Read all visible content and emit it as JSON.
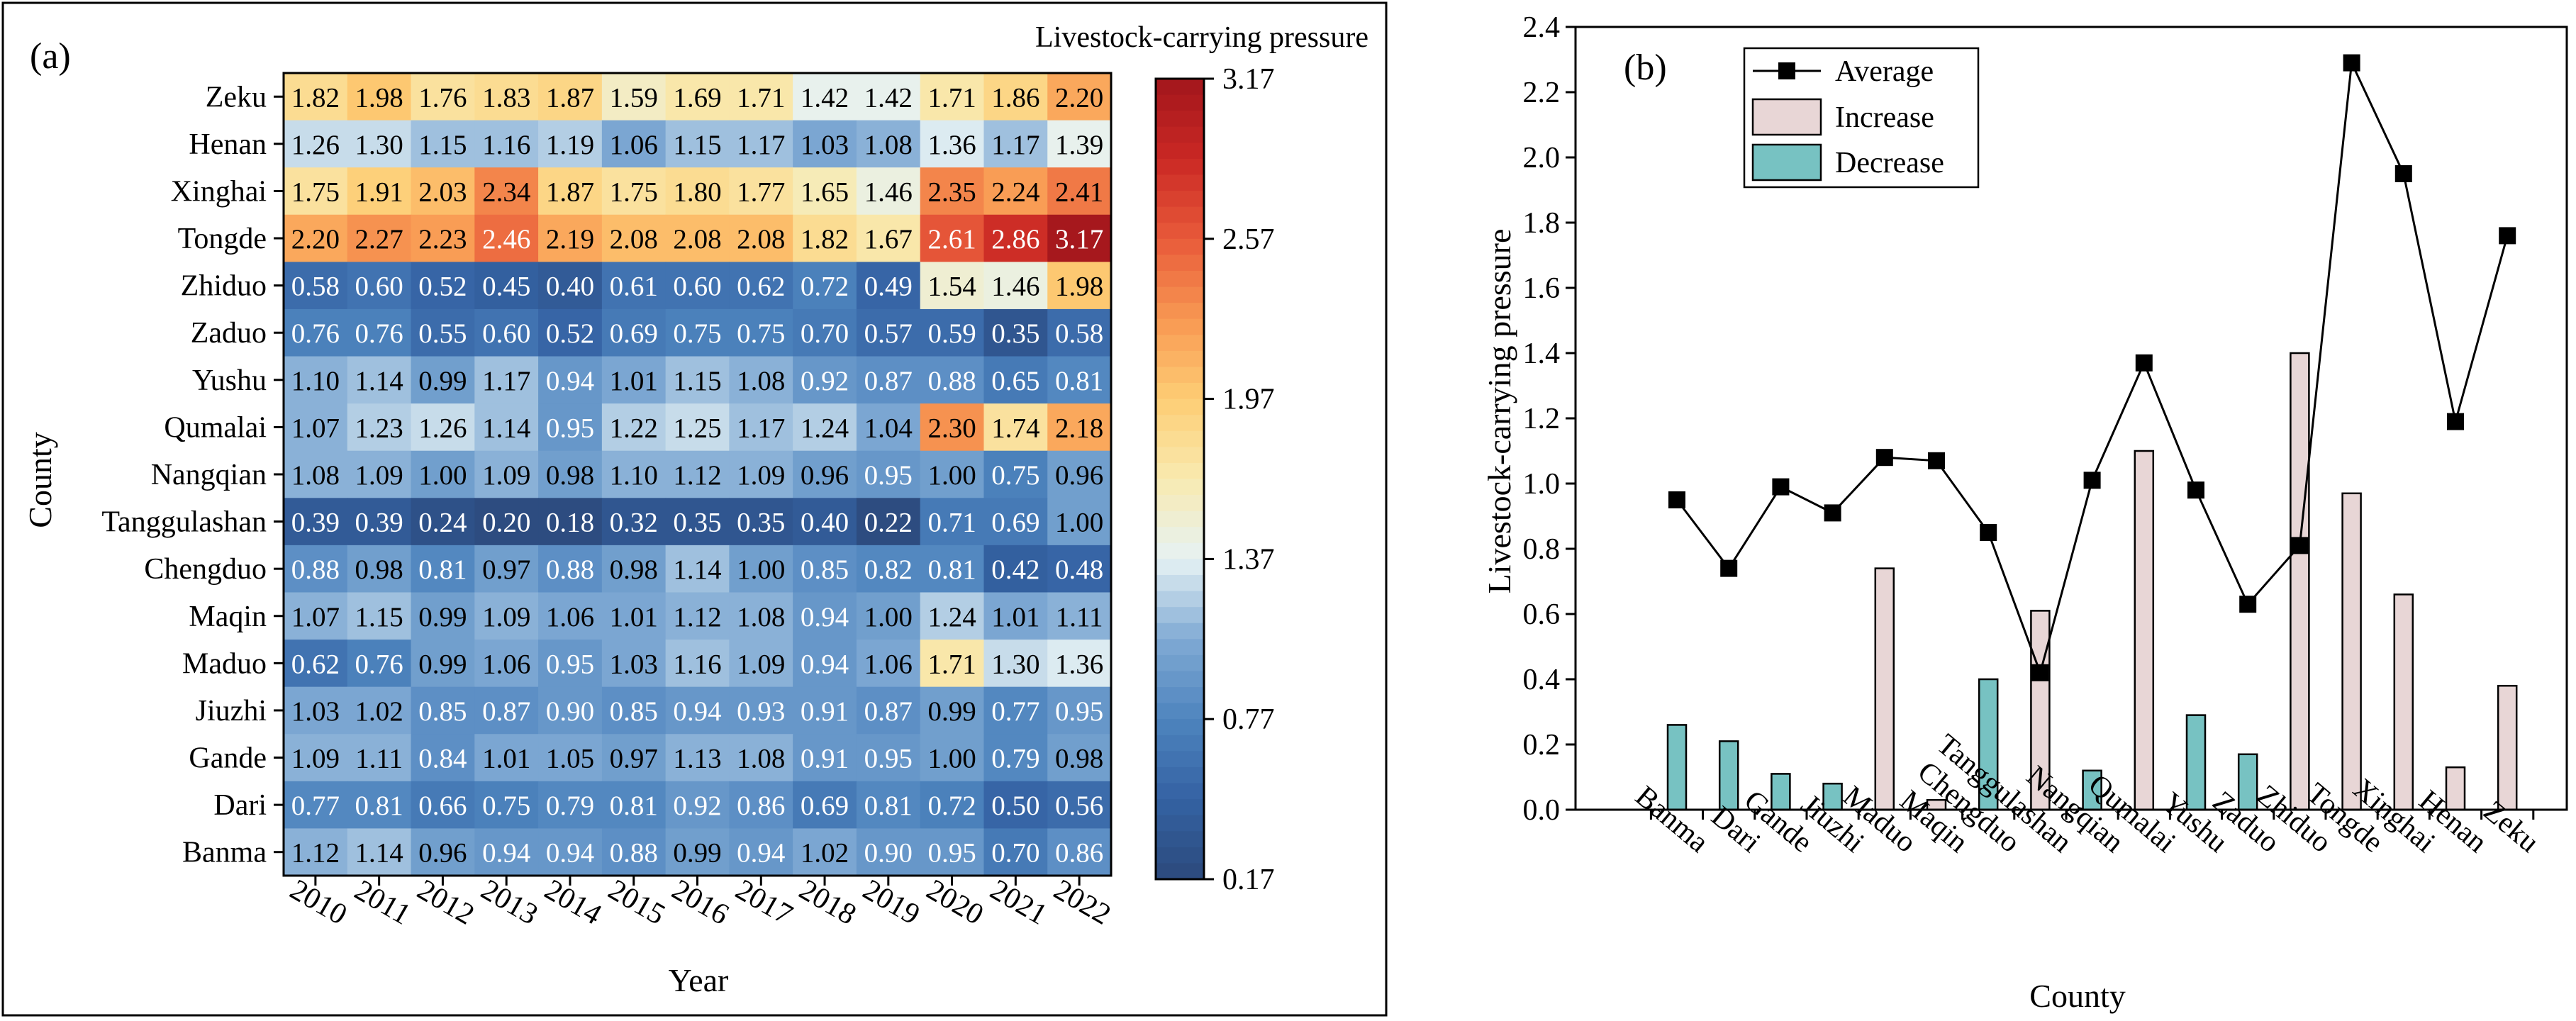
{
  "chart_data": [
    {
      "type": "heatmap",
      "panel_label": "(a)",
      "title": "Livestock-carrying pressure",
      "xlabel": "Year",
      "ylabel": "County",
      "years": [
        "2010",
        "2011",
        "2012",
        "2013",
        "2014",
        "2015",
        "2016",
        "2017",
        "2018",
        "2019",
        "2020",
        "2021",
        "2022"
      ],
      "counties": [
        "Zeku",
        "Henan",
        "Xinghai",
        "Tongde",
        "Zhiduo",
        "Zaduo",
        "Yushu",
        "Qumalai",
        "Nangqian",
        "Tanggulashan",
        "Chengduo",
        "Maqin",
        "Maduo",
        "Jiuzhi",
        "Gande",
        "Dari",
        "Banma"
      ],
      "values": [
        [
          1.82,
          1.98,
          1.76,
          1.83,
          1.87,
          1.59,
          1.69,
          1.71,
          1.42,
          1.42,
          1.71,
          1.86,
          2.2
        ],
        [
          1.26,
          1.3,
          1.15,
          1.16,
          1.19,
          1.06,
          1.15,
          1.17,
          1.03,
          1.08,
          1.36,
          1.17,
          1.39
        ],
        [
          1.75,
          1.91,
          2.03,
          2.34,
          1.87,
          1.75,
          1.8,
          1.77,
          1.65,
          1.46,
          2.35,
          2.24,
          2.41
        ],
        [
          2.2,
          2.27,
          2.23,
          2.46,
          2.19,
          2.08,
          2.08,
          2.08,
          1.82,
          1.67,
          2.61,
          2.86,
          3.17
        ],
        [
          0.58,
          0.6,
          0.52,
          0.45,
          0.4,
          0.61,
          0.6,
          0.62,
          0.72,
          0.49,
          1.54,
          1.46,
          1.98
        ],
        [
          0.76,
          0.76,
          0.55,
          0.6,
          0.52,
          0.69,
          0.75,
          0.75,
          0.7,
          0.57,
          0.59,
          0.35,
          0.58
        ],
        [
          1.1,
          1.14,
          0.99,
          1.17,
          0.94,
          1.01,
          1.15,
          1.08,
          0.92,
          0.87,
          0.88,
          0.65,
          0.81
        ],
        [
          1.07,
          1.23,
          1.26,
          1.14,
          0.95,
          1.22,
          1.25,
          1.17,
          1.24,
          1.04,
          2.3,
          1.74,
          2.18
        ],
        [
          1.08,
          1.09,
          1.0,
          1.09,
          0.98,
          1.1,
          1.12,
          1.09,
          0.96,
          0.95,
          1.0,
          0.75,
          0.96
        ],
        [
          0.39,
          0.39,
          0.24,
          0.2,
          0.18,
          0.32,
          0.35,
          0.35,
          0.4,
          0.22,
          0.71,
          0.69,
          1.0
        ],
        [
          0.88,
          0.98,
          0.81,
          0.97,
          0.88,
          0.98,
          1.14,
          1.0,
          0.85,
          0.82,
          0.81,
          0.42,
          0.48
        ],
        [
          1.07,
          1.15,
          0.99,
          1.09,
          1.06,
          1.01,
          1.12,
          1.08,
          0.94,
          1.0,
          1.24,
          1.01,
          1.11
        ],
        [
          0.62,
          0.76,
          0.99,
          1.06,
          0.95,
          1.03,
          1.16,
          1.09,
          0.94,
          1.06,
          1.71,
          1.3,
          1.36
        ],
        [
          1.03,
          1.02,
          0.85,
          0.87,
          0.9,
          0.85,
          0.94,
          0.93,
          0.91,
          0.87,
          0.99,
          0.77,
          0.95
        ],
        [
          1.09,
          1.11,
          0.84,
          1.01,
          1.05,
          0.97,
          1.13,
          1.08,
          0.91,
          0.95,
          1.0,
          0.79,
          0.98
        ],
        [
          0.77,
          0.81,
          0.66,
          0.75,
          0.79,
          0.81,
          0.92,
          0.86,
          0.69,
          0.81,
          0.72,
          0.5,
          0.56
        ],
        [
          1.12,
          1.14,
          0.96,
          0.94,
          0.94,
          0.88,
          0.99,
          0.94,
          1.02,
          0.9,
          0.95,
          0.7,
          0.86
        ]
      ],
      "colorbar": {
        "min": 0.17,
        "max": 3.17,
        "ticks": [
          "3.17",
          "2.57",
          "1.97",
          "1.37",
          "0.77",
          "0.17"
        ],
        "low_color": "#2c4a7c",
        "mid_color": "#e6f2f4",
        "high_color": "#a2161c"
      }
    },
    {
      "type": "bar+line",
      "panel_label": "(b)",
      "xlabel": "County",
      "ylabel": "Livestock-carrying pressure",
      "categories": [
        "Banma",
        "Dari",
        "Gande",
        "Jiuzhi",
        "Maduo",
        "Maqin",
        "Chengduo",
        "Tanggulashan",
        "Nangqian",
        "Qumalai",
        "Yushu",
        "Zaduo",
        "Zhiduo",
        "Tongde",
        "Xinghai",
        "Henan",
        "Zeku"
      ],
      "ylim": [
        0.0,
        2.4
      ],
      "yticks": [
        "0.0",
        "0.2",
        "0.4",
        "0.6",
        "0.8",
        "1.0",
        "1.2",
        "1.4",
        "1.6",
        "1.8",
        "2.0",
        "2.2",
        "2.4"
      ],
      "legend": [
        "Average",
        "Increase",
        "Decrease"
      ],
      "series": [
        {
          "name": "Average",
          "type": "line",
          "values": [
            0.95,
            0.74,
            0.99,
            0.91,
            1.08,
            1.07,
            0.85,
            0.42,
            1.01,
            1.37,
            0.98,
            0.63,
            0.81,
            2.29,
            1.95,
            1.19,
            1.76
          ]
        },
        {
          "name": "Increase",
          "type": "bar",
          "values": [
            null,
            null,
            null,
            null,
            0.74,
            0.03,
            null,
            0.61,
            null,
            1.1,
            null,
            null,
            1.4,
            0.97,
            0.66,
            0.13,
            0.38
          ]
        },
        {
          "name": "Decrease",
          "type": "bar",
          "values": [
            0.26,
            0.21,
            0.11,
            0.08,
            null,
            null,
            0.4,
            null,
            0.12,
            null,
            0.29,
            0.17,
            null,
            null,
            null,
            null,
            null
          ]
        }
      ],
      "colors": {
        "increase": "#e8d6d6",
        "decrease": "#77c2c2",
        "line": "#000000"
      }
    }
  ]
}
